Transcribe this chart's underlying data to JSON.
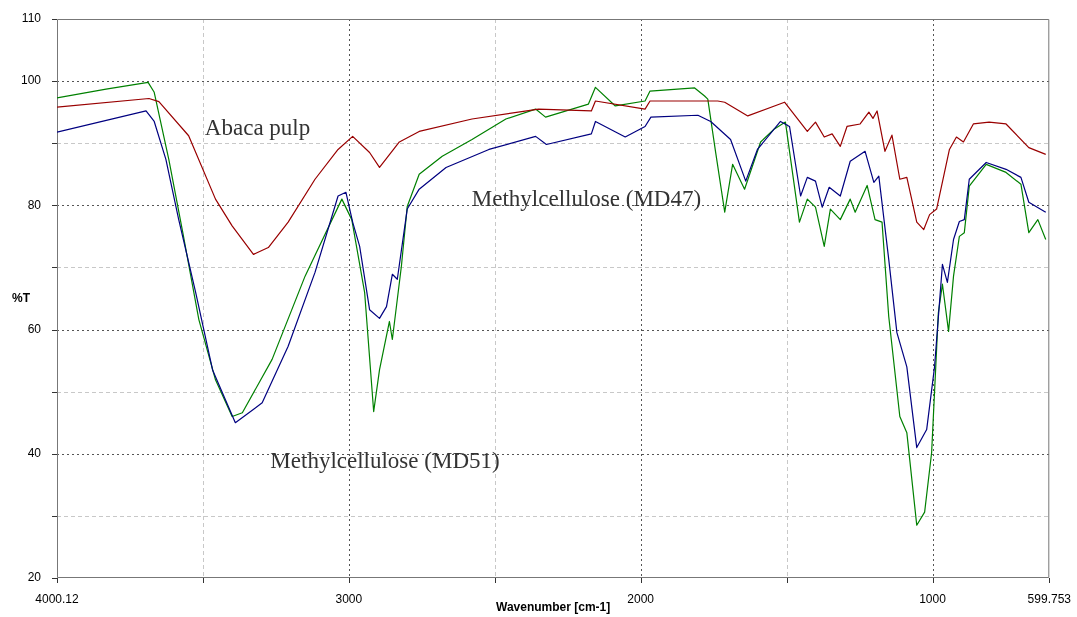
{
  "chart_data": {
    "type": "line",
    "xlabel": "Wavenumber [cm-1]",
    "ylabel": "%T",
    "xlim": [
      4000.12,
      599.753
    ],
    "xticks": [
      4000.12,
      {
        "value": 3500,
        "label": null
      },
      3000,
      {
        "value": 2500,
        "label": null
      },
      2000,
      {
        "value": 1500,
        "label": null
      },
      1000,
      599.753
    ],
    "ylim": [
      20,
      110
    ],
    "yticks": [
      20,
      {
        "value": 30,
        "label": null
      },
      40,
      {
        "value": 50,
        "label": null
      },
      60,
      {
        "value": 70,
        "label": null
      },
      80,
      {
        "value": 90,
        "label": null
      },
      100,
      110
    ],
    "grid": true,
    "series": [
      {
        "name": "Abaca pulp",
        "color": "#990000",
        "x": [
          4000,
          3685,
          3651,
          3549,
          3457,
          3400,
          3327,
          3276,
          3208,
          3116,
          3037,
          2987,
          2929,
          2895,
          2827,
          2759,
          2578,
          2350,
          2169,
          2155,
          1985,
          1968,
          1736,
          1712,
          1633,
          1507,
          1429,
          1401,
          1371,
          1344,
          1316,
          1293,
          1248,
          1218,
          1204,
          1190,
          1163,
          1139,
          1112,
          1088,
          1054,
          1030,
          1010,
          986,
          942,
          918,
          894,
          860,
          806,
          748,
          670,
          612
        ],
        "values": [
          95.8,
          97.2,
          96.7,
          91.2,
          81.0,
          76.7,
          72.1,
          73.2,
          77.3,
          84.2,
          89.0,
          91.1,
          88.5,
          86.1,
          90.2,
          91.9,
          93.9,
          95.5,
          95.2,
          96.8,
          95.5,
          96.8,
          96.8,
          96.6,
          94.4,
          96.6,
          91.9,
          93.4,
          91.0,
          91.5,
          89.5,
          92.7,
          93.1,
          95.0,
          94.0,
          95.2,
          88.7,
          91.3,
          84.2,
          84.5,
          77.3,
          76.1,
          78.5,
          79.4,
          89.0,
          91.0,
          90.2,
          93.1,
          93.4,
          93.1,
          89.3,
          88.2
        ]
      },
      {
        "name": "Methylcellulose (MD51)",
        "color": "#000080",
        "x": [
          4000,
          3695,
          3667,
          3627,
          3583,
          3525,
          3467,
          3389,
          3297,
          3208,
          3116,
          3037,
          3010,
          2987,
          2963,
          2929,
          2895,
          2871,
          2851,
          2834,
          2800,
          2759,
          2667,
          2520,
          2360,
          2323,
          2169,
          2155,
          2053,
          1985,
          1965,
          1804,
          1760,
          1692,
          1640,
          1600,
          1521,
          1490,
          1452,
          1429,
          1401,
          1378,
          1354,
          1316,
          1282,
          1231,
          1201,
          1184,
          1150,
          1122,
          1088,
          1054,
          1020,
          993,
          966,
          949,
          928,
          908,
          891,
          874,
          816,
          748,
          697,
          670,
          612
        ],
        "values": [
          91.8,
          95.2,
          93.5,
          87.4,
          77.7,
          66.0,
          53.5,
          45.0,
          48.2,
          57.3,
          69.2,
          81.5,
          82.1,
          77.3,
          73.4,
          63.2,
          61.8,
          63.7,
          68.9,
          68.1,
          79.4,
          82.6,
          86.1,
          89.0,
          91.1,
          89.8,
          91.5,
          93.5,
          91.0,
          92.7,
          94.2,
          94.5,
          93.5,
          90.6,
          83.9,
          89.0,
          93.5,
          92.7,
          81.5,
          84.5,
          83.9,
          79.7,
          82.9,
          81.5,
          87.1,
          88.7,
          83.7,
          84.7,
          71.3,
          59.5,
          54.0,
          41.0,
          43.9,
          54.0,
          70.5,
          67.6,
          74.5,
          77.4,
          77.7,
          84.2,
          86.9,
          85.8,
          84.5,
          80.5,
          78.9
        ]
      },
      {
        "name": "Methylcellulose (MD47)",
        "color": "#008000",
        "x": [
          4000,
          3832,
          3688,
          3667,
          3617,
          3569,
          3514,
          3457,
          3400,
          3365,
          3263,
          3150,
          3024,
          2990,
          2946,
          2915,
          2895,
          2861,
          2851,
          2820,
          2800,
          2759,
          2680,
          2578,
          2462,
          2360,
          2326,
          2179,
          2155,
          2087,
          1985,
          1968,
          1815,
          1781,
          1770,
          1743,
          1712,
          1685,
          1644,
          1589,
          1542,
          1504,
          1456,
          1429,
          1401,
          1371,
          1350,
          1316,
          1282,
          1265,
          1224,
          1197,
          1173,
          1150,
          1112,
          1088,
          1054,
          1027,
          1003,
          980,
          966,
          945,
          928,
          908,
          891,
          874,
          816,
          748,
          697,
          670,
          639,
          612
        ],
        "values": [
          97.3,
          98.7,
          99.8,
          98.2,
          87.4,
          75.6,
          61.6,
          51.9,
          46.0,
          46.6,
          55.2,
          68.6,
          81.0,
          77.7,
          66.0,
          46.8,
          53.5,
          61.3,
          58.4,
          70.2,
          79.8,
          85.0,
          87.9,
          90.6,
          93.9,
          95.5,
          94.2,
          96.3,
          99.0,
          96.0,
          96.8,
          98.4,
          98.9,
          97.6,
          97.1,
          88.5,
          78.9,
          86.6,
          82.6,
          90.2,
          92.3,
          93.4,
          77.3,
          81.0,
          79.7,
          73.4,
          79.4,
          77.7,
          81.0,
          78.9,
          83.2,
          77.7,
          77.3,
          62.1,
          46.0,
          43.4,
          28.5,
          30.6,
          40.2,
          62.7,
          67.3,
          59.7,
          68.6,
          75.0,
          75.6,
          83.1,
          86.6,
          85.3,
          83.4,
          75.6,
          77.7,
          74.5
        ]
      }
    ]
  }
}
